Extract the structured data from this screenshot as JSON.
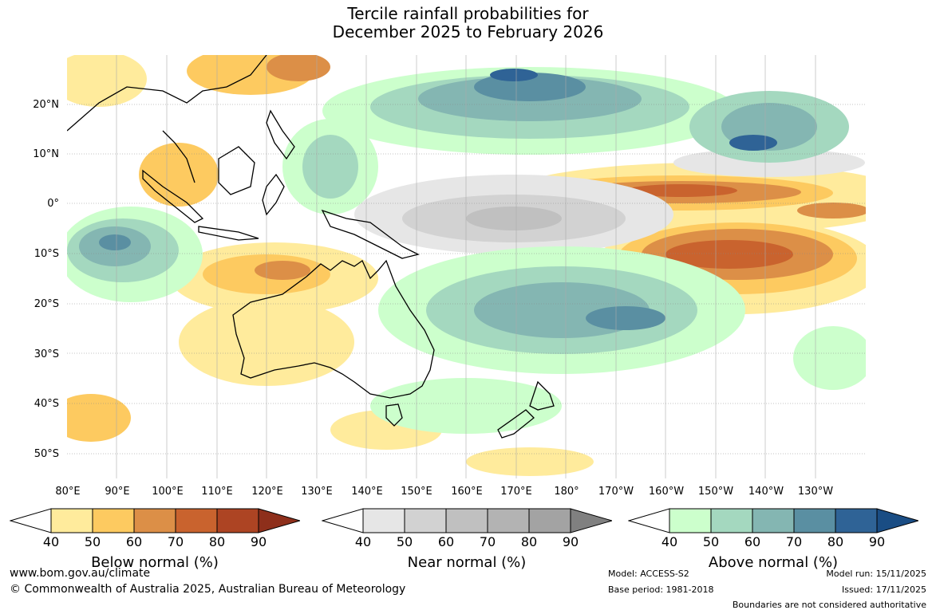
{
  "title": {
    "line1": "Tercile rainfall probabilities for",
    "line2": "December 2025 to February 2026"
  },
  "axes": {
    "lat_labels": [
      "20°N",
      "10°N",
      "0°",
      "10°S",
      "20°S",
      "30°S",
      "40°S",
      "50°S"
    ],
    "lon_labels": [
      "80°E",
      "90°E",
      "100°E",
      "110°E",
      "120°E",
      "130°E",
      "140°E",
      "150°E",
      "160°E",
      "170°E",
      "180°",
      "170°W",
      "160°W",
      "150°W",
      "140°W",
      "130°W"
    ]
  },
  "colorbars": [
    {
      "title": "Below normal (%)",
      "ticks": [
        "40",
        "50",
        "60",
        "70",
        "80",
        "90"
      ],
      "colors": [
        "#ffffff",
        "#ffeb9c",
        "#fdca60",
        "#dc8f47",
        "#c9632e",
        "#ad4423",
        "#8e2f1b"
      ]
    },
    {
      "title": "Near normal (%)",
      "ticks": [
        "40",
        "50",
        "60",
        "70",
        "80",
        "90"
      ],
      "colors": [
        "#ffffff",
        "#e6e6e6",
        "#d2d2d2",
        "#c0c0c0",
        "#b3b3b3",
        "#a3a3a3",
        "#808080"
      ]
    },
    {
      "title": "Above normal (%)",
      "ticks": [
        "40",
        "50",
        "60",
        "70",
        "80",
        "90"
      ],
      "colors": [
        "#ffffff",
        "#ccffcc",
        "#a4d8bf",
        "#84b6b2",
        "#5a8fa2",
        "#2f6396",
        "#1a4d84"
      ]
    }
  ],
  "footer": {
    "url": "www.bom.gov.au/climate",
    "copyright": "© Commonwealth of Australia 2025, Australian Bureau of Meteorology",
    "model": "Model: ACCESS-S2",
    "base_period": "Base period: 1981-2018",
    "model_run": "Model run: 15/11/2025",
    "issued": "Issued: 17/11/2025",
    "disclaimer": "Boundaries are not considered authoritative"
  }
}
